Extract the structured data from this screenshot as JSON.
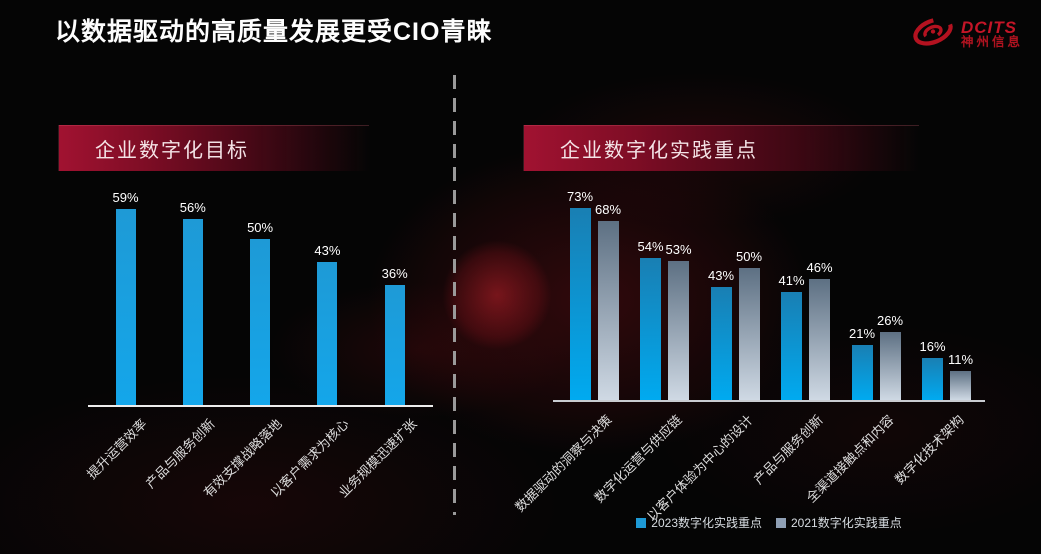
{
  "title": "以数据驱动的高质量发展更受CIO青睐",
  "logo": {
    "name": "DCITS",
    "subtitle": "神州信息",
    "color": "#c41527",
    "icon": "dcits-swirl-icon"
  },
  "panels": [
    {
      "header": "企业数字化目标"
    },
    {
      "header": "企业数字化实践重点"
    }
  ],
  "colors": {
    "accent_red": "#9e1030",
    "bar_cyan_top": "#1b86bb",
    "bar_cyan_bottom": "#00aaf0",
    "bar_gray_top": "#5d7083",
    "bar_gray_bottom": "#cfd9e4",
    "divider_gray": "#9a9a9a"
  },
  "chart_data": [
    {
      "type": "bar",
      "title": "企业数字化目标",
      "categories": [
        "提升运营效率",
        "产品与服务创新",
        "有效支撑战略落地",
        "以客户需求为核心",
        "业务规模迅速扩张"
      ],
      "values": [
        59,
        56,
        50,
        43,
        36
      ],
      "value_suffix": "%",
      "ylim": [
        0,
        66
      ],
      "grid": false,
      "bar_gradient": [
        "#1e9ad6",
        "#14a6ea"
      ]
    },
    {
      "type": "bar",
      "title": "企业数字化实践重点",
      "categories": [
        "数据驱动的洞察与决策",
        "数字化运营与供应链",
        "以客户体验为中心的设计",
        "产品与服务创新",
        "全渠道接触点和内容",
        "数字化技术架构"
      ],
      "series": [
        {
          "name": "2023数字化实践重点",
          "values": [
            73,
            54,
            43,
            41,
            21,
            16
          ],
          "color_top": "#197fb3",
          "color_bottom": "#00aaf0",
          "legend_color": "#1e9ad6"
        },
        {
          "name": "2021数字化实践重点",
          "values": [
            68,
            53,
            50,
            46,
            26,
            11
          ],
          "color_top": "#5d7083",
          "color_bottom": "#cfd9e4",
          "legend_color": "#8fa0b5"
        }
      ],
      "value_suffix": "%",
      "ylim": [
        0,
        82
      ],
      "grid": false,
      "legend_position": "bottom"
    }
  ]
}
